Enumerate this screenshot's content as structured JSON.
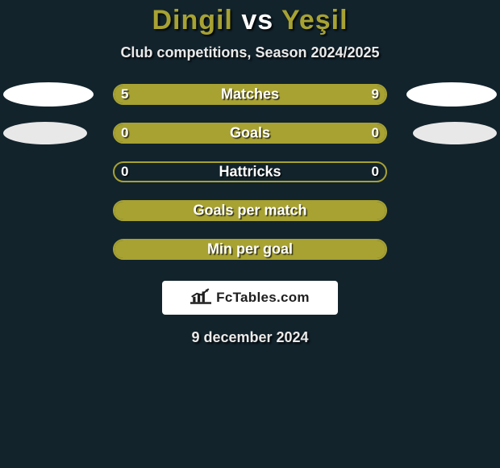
{
  "title": {
    "player1": "Dingil",
    "vs": "vs",
    "player2": "Yeşil"
  },
  "subtitle": "Club competitions, Season 2024/2025",
  "colors": {
    "accent": "#a7a232",
    "background": "#12232c",
    "text": "#ffffff"
  },
  "rows": [
    {
      "category": "Matches",
      "left_value": "5",
      "right_value": "9",
      "fill": "full",
      "side_left": {
        "show": true,
        "shade": "white",
        "size": "big"
      },
      "side_right": {
        "show": true,
        "shade": "white",
        "size": "big"
      }
    },
    {
      "category": "Goals",
      "left_value": "0",
      "right_value": "0",
      "fill": "full",
      "side_left": {
        "show": true,
        "shade": "light",
        "size": "normal"
      },
      "side_right": {
        "show": true,
        "shade": "light",
        "size": "normal"
      }
    },
    {
      "category": "Hattricks",
      "left_value": "0",
      "right_value": "0",
      "fill": "none",
      "side_left": {
        "show": false
      },
      "side_right": {
        "show": false
      }
    },
    {
      "category": "Goals per match",
      "left_value": "",
      "right_value": "",
      "fill": "full",
      "side_left": {
        "show": false
      },
      "side_right": {
        "show": false
      }
    },
    {
      "category": "Min per goal",
      "left_value": "",
      "right_value": "",
      "fill": "full",
      "side_left": {
        "show": false
      },
      "side_right": {
        "show": false
      }
    }
  ],
  "footer_brand": "FcTables.com",
  "date": "9 december 2024"
}
